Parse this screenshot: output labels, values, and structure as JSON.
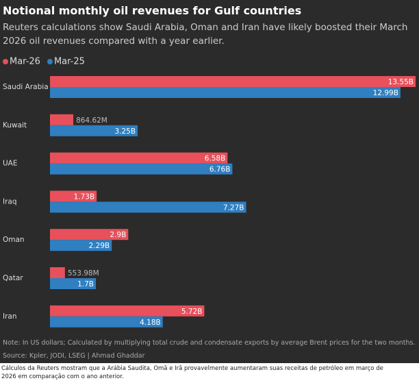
{
  "chart_data": {
    "type": "bar",
    "orientation": "horizontal",
    "title": "Notional monthly oil revenues for Gulf countries",
    "subtitle": "Reuters calculations show Saudi Arabia, Oman and Iran have likely boosted their March 2026 oil revenues compared with a year earlier.",
    "categories": [
      "Saudi Arabia",
      "Kuwait",
      "UAE",
      "Iraq",
      "Oman",
      "Qatar",
      "Iran"
    ],
    "series": [
      {
        "name": "Mar-26",
        "color": "#e8505b",
        "values": [
          13.55,
          0.86462,
          6.58,
          1.73,
          2.9,
          0.55398,
          5.72
        ],
        "value_labels": [
          "13.55B",
          "864.62M",
          "6.58B",
          "1.73B",
          "2.9B",
          "553.98M",
          "5.72B"
        ]
      },
      {
        "name": "Mar-25",
        "color": "#2f7fc1",
        "values": [
          12.99,
          3.25,
          6.76,
          7.27,
          2.29,
          1.7,
          4.18
        ],
        "value_labels": [
          "12.99B",
          "3.25B",
          "6.76B",
          "7.27B",
          "2.29B",
          "1.7B",
          "4.18B"
        ]
      }
    ],
    "note": "Note: In US dollars; Calculated by multiplying total crude and condensate exports by average Brent prices for the two months.",
    "source": "Source: Kpler, JODI, LSEG | Ahmad Ghaddar"
  },
  "caption": "Cálculos da Reuters mostram que a Arábia Saudita, Omã e Irã provavelmente aumentaram suas receitas de petróleo em março de 2026 em comparação com o ano anterior."
}
